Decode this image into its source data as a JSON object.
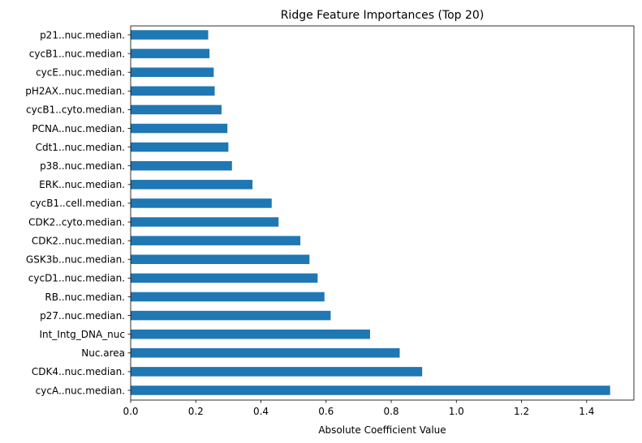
{
  "chart_data": {
    "type": "bar",
    "orientation": "horizontal",
    "title": "Ridge Feature Importances (Top 20)",
    "xlabel": "Absolute Coefficient Value",
    "ylabel": "",
    "xlim": [
      0,
      1.545
    ],
    "xticks": [
      "0.0",
      "0.2",
      "0.4",
      "0.6",
      "0.8",
      "1.0",
      "1.2",
      "1.4"
    ],
    "grid": false,
    "bar_color": "#1f77b4",
    "categories": [
      "cycA..nuc.median.",
      "CDK4..nuc.median.",
      "Nuc.area",
      "Int_Intg_DNA_nuc",
      "p27..nuc.median.",
      "RB..nuc.median.",
      "cycD1..nuc.median.",
      "GSK3b..nuc.median.",
      "CDK2..nuc.median.",
      "CDK2..cyto.median.",
      "cycB1..cell.median.",
      "ERK..nuc.median.",
      "p38..nuc.median.",
      "Cdt1..nuc.median.",
      "PCNA..nuc.median.",
      "cycB1..cyto.median.",
      "pH2AX..nuc.median.",
      "cycE..nuc.median.",
      "cycB1..nuc.median.",
      "p21..nuc.median."
    ],
    "values": [
      1.472,
      0.895,
      0.826,
      0.735,
      0.614,
      0.595,
      0.574,
      0.549,
      0.521,
      0.454,
      0.433,
      0.374,
      0.311,
      0.3,
      0.297,
      0.279,
      0.258,
      0.255,
      0.242,
      0.238
    ]
  }
}
